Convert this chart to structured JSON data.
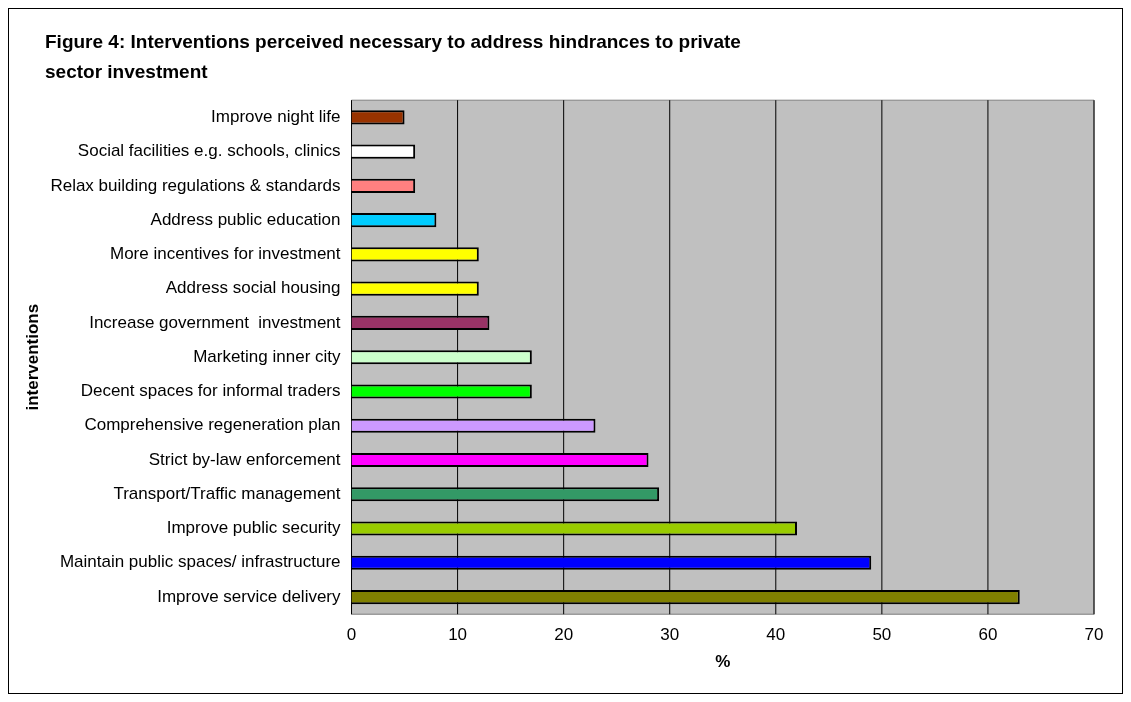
{
  "chart_data": {
    "type": "bar",
    "orientation": "horizontal",
    "title": "Figure 4: Interventions perceived necessary to address hindrances to private sector investment",
    "xlabel": "%",
    "ylabel": "interventions",
    "categories": [
      "Improve night life",
      "Social facilities e.g. schools, clinics",
      "Relax building regulations & standards",
      "Address public education",
      "More incentives for investment",
      "Address social housing",
      "Increase government  investment",
      "Marketing inner city",
      "Decent spaces for informal traders",
      "Comprehensive regeneration plan",
      "Strict by-law enforcement",
      "Transport/Traffic management",
      "Improve public security",
      "Maintain public spaces/ infrastructure",
      "Improve service delivery"
    ],
    "values": [
      5,
      6,
      6,
      8,
      12,
      12,
      13,
      17,
      17,
      23,
      28,
      29,
      42,
      49,
      63
    ],
    "colors": [
      "#993300",
      "#ffffff",
      "#ff8080",
      "#00ccff",
      "#ffff00",
      "#ffff00",
      "#993366",
      "#ccffcc",
      "#00ff00",
      "#cc99ff",
      "#ff00ff",
      "#339966",
      "#99cc00",
      "#0000ff",
      "#808000"
    ],
    "xlim": [
      0,
      70
    ],
    "xticks": [
      0,
      10,
      20,
      30,
      40,
      50,
      60,
      70
    ],
    "grid": "x",
    "legend": false
  }
}
